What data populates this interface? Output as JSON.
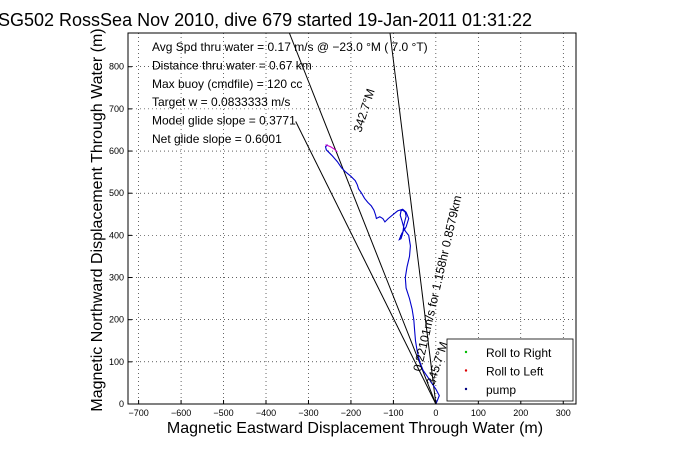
{
  "chart_data": {
    "type": "line",
    "title": "SG502 RossSea Nov 2010, dive 679 started 19-Jan-2011 01:31:22",
    "xlabel": "Magnetic Eastward Displacement Through Water (m)",
    "ylabel": "Magnetic Northward Displacement Through Water (m)",
    "xlim": [
      -725,
      330
    ],
    "ylim": [
      0,
      880
    ],
    "xticks": [
      -700,
      -600,
      -500,
      -400,
      -300,
      -200,
      -100,
      0,
      100,
      200,
      300
    ],
    "yticks": [
      0,
      100,
      200,
      300,
      400,
      500,
      600,
      700,
      800
    ],
    "grid": true,
    "legend_position": "bottom-right",
    "legend": [
      {
        "label": "Roll to Right",
        "color": "#00bb00"
      },
      {
        "label": "Roll to Left",
        "color": "#dd0000"
      },
      {
        "label": "pump",
        "color": "#000080"
      }
    ],
    "annotations": [
      "Avg Spd thru water =  0.17 m/s @ −23.0    °M (  7.0 °T)",
      "Distance thru water =  0.67 km",
      "Max buoy (cmdfile) = 120 cc",
      "Target w = 0.0833333 m/s",
      "Model glide slope = 0.3771",
      "Net glide slope = 0.6001"
    ],
    "line_labels": {
      "track": "0.22101m/s for 1.158hr 0.8579km",
      "heading_upper": "342.7°M",
      "heading_lower": "345.7°M"
    },
    "series": [
      {
        "color": "#0000cc",
        "x": [
          0,
          8,
          0,
          -10,
          -20,
          -30,
          -38,
          -44,
          -48,
          -50,
          -52,
          -56,
          -62,
          -70,
          -72,
          -68,
          -62,
          -60,
          -64,
          -72,
          -76,
          -74,
          -70,
          -72,
          -78,
          -82,
          -84,
          -80,
          -76,
          -78,
          -82,
          -86,
          -80,
          -70,
          -64,
          -70,
          -78,
          -90,
          -100,
          -112,
          -120,
          -125,
          -132,
          -140,
          -142,
          -146,
          -152,
          -160,
          -168,
          -175,
          -182,
          -185,
          -190,
          -200,
          -212,
          -222,
          -232,
          -245,
          -258,
          -260,
          -255
        ],
        "y": [
          0,
          20,
          35,
          50,
          65,
          80,
          100,
          125,
          150,
          175,
          200,
          225,
          250,
          275,
          300,
          325,
          350,
          375,
          400,
          410,
          420,
          430,
          445,
          455,
          460,
          458,
          448,
          435,
          420,
          405,
          392,
          390,
          405,
          420,
          440,
          455,
          462,
          458,
          450,
          440,
          432,
          440,
          444,
          440,
          448,
          460,
          470,
          478,
          488,
          500,
          510,
          520,
          530,
          540,
          550,
          560,
          575,
          590,
          603,
          610,
          615
        ]
      },
      {
        "color": "#cc00cc",
        "x": [
          -260,
          -248,
          -240,
          -232
        ],
        "y": [
          615,
          610,
          605,
          598
        ]
      }
    ],
    "reference_lines": [
      {
        "x": [
          0,
          -345
        ],
        "y": [
          0,
          880
        ]
      },
      {
        "x": [
          0,
          -330
        ],
        "y": [
          0,
          670
        ]
      },
      {
        "x": [
          0,
          -108
        ],
        "y": [
          0,
          880
        ]
      }
    ]
  }
}
